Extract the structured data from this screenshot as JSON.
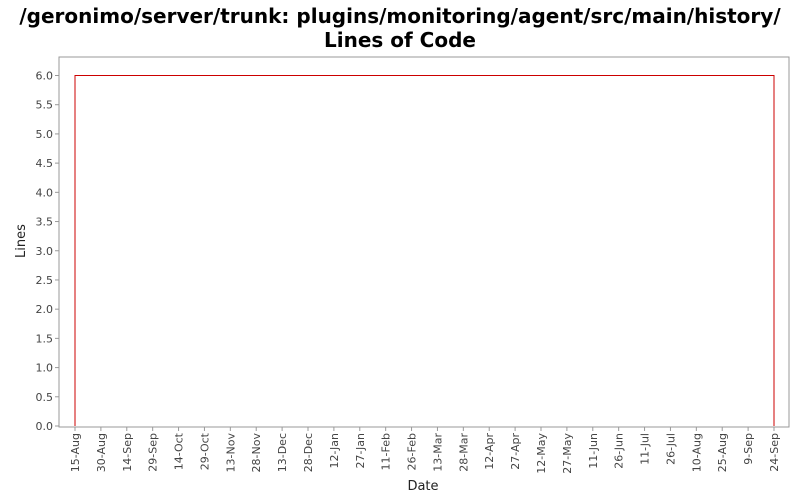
{
  "chart_data": {
    "type": "line",
    "title": "/geronimo/server/trunk: plugins/monitoring/agent/src/main/history/ Lines of Code",
    "xlabel": "Date",
    "ylabel": "Lines",
    "x_tick_labels": [
      "15-Aug",
      "30-Aug",
      "14-Sep",
      "29-Sep",
      "14-Oct",
      "29-Oct",
      "13-Nov",
      "28-Nov",
      "13-Dec",
      "28-Dec",
      "12-Jan",
      "27-Jan",
      "11-Feb",
      "26-Feb",
      "13-Mar",
      "28-Mar",
      "12-Apr",
      "27-Apr",
      "12-May",
      "27-May",
      "11-Jun",
      "26-Jun",
      "11-Jul",
      "26-Jul",
      "10-Aug",
      "25-Aug",
      "9-Sep",
      "24-Sep"
    ],
    "y_tick_labels": [
      "0.0",
      "0.5",
      "1.0",
      "1.5",
      "2.0",
      "2.5",
      "3.0",
      "3.5",
      "4.0",
      "4.5",
      "5.0",
      "5.5",
      "6.0"
    ],
    "ylim": [
      0,
      6.2
    ],
    "series": [
      {
        "color": "#cc0000",
        "points": [
          {
            "x": "15-Aug",
            "y": 0
          },
          {
            "x": "15-Aug",
            "y": 6
          },
          {
            "x": "24-Sep",
            "y": 6
          },
          {
            "x": "24-Sep",
            "y": 0
          }
        ]
      }
    ],
    "grid": false
  }
}
